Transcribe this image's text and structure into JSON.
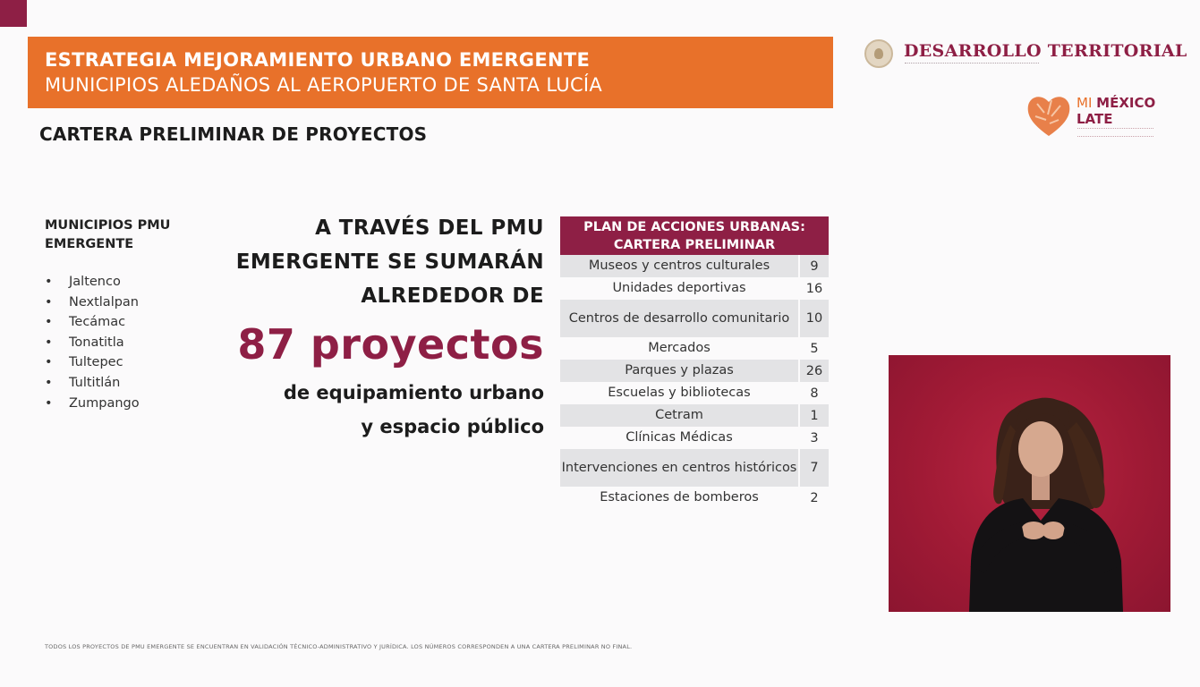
{
  "header": {
    "line1": "ESTRATEGIA MEJORAMIENTO URBANO EMERGENTE",
    "line2": "MUNICIPIOS ALEDAÑOS AL AEROPUERTO DE SANTA LUCÍA"
  },
  "subtitle": "CARTERA PRELIMINAR DE PROYECTOS",
  "logos": {
    "desarrollo": "DESARROLLO TERRITORIAL",
    "mml_mi": "MI",
    "mml_mexico": "MÉXICO",
    "mml_late": "LATE"
  },
  "municipios": {
    "title": "MUNICIPIOS PMU EMERGENTE",
    "items": [
      "Jaltenco",
      "Nextlalpan",
      "Tecámac",
      "Tonatitla",
      "Tultepec",
      "Tultitlán",
      "Zumpango"
    ]
  },
  "headline": {
    "l1": "A TRAVÉS DEL PMU",
    "l2": "EMERGENTE SE SUMARÁN",
    "l3": "ALREDEDOR DE",
    "number": "87 proyectos",
    "l4": "de equipamiento urbano",
    "l5": "y espacio público"
  },
  "table": {
    "title": "PLAN DE ACCIONES URBANAS: CARTERA PRELIMINAR",
    "rows": [
      {
        "label": "Museos  y centros culturales",
        "value": "9"
      },
      {
        "label": "Unidades deportivas",
        "value": "16"
      },
      {
        "label": "Centros de desarrollo comunitario",
        "value": "10"
      },
      {
        "label": "Mercados",
        "value": "5"
      },
      {
        "label": "Parques y plazas",
        "value": "26"
      },
      {
        "label": "Escuelas y bibliotecas",
        "value": "8"
      },
      {
        "label": "Cetram",
        "value": "1"
      },
      {
        "label": "Clínicas Médicas",
        "value": "3"
      },
      {
        "label": "Intervenciones en centros históricos",
        "value": "7"
      },
      {
        "label": "Estaciones de bomberos",
        "value": "2"
      }
    ]
  },
  "footnote": "TODOS LOS PROYECTOS DE PMU EMERGENTE SE ENCUENTRAN EN VALIDACIÓN TÉCNICO-ADMINISTRATIVO Y JURÍDICA. LOS NÚMEROS CORRESPONDEN A UNA CARTERA PRELIMINAR NO FINAL.",
  "colors": {
    "brand": "#8e1f45",
    "orange": "#e8712a",
    "row_shade": "#e3e3e5"
  }
}
